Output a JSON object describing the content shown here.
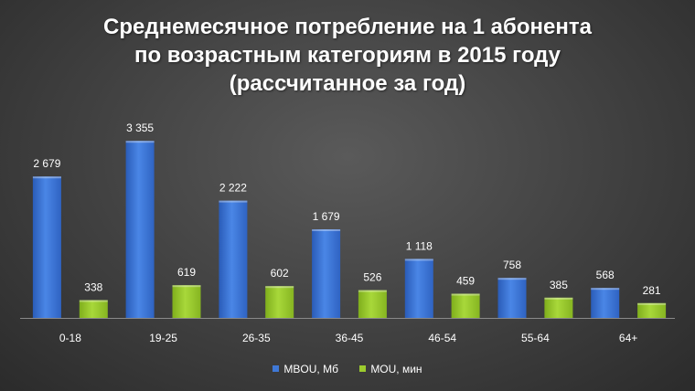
{
  "colors": {
    "series1": "#3f78d6",
    "series2": "#9ccb2e"
  },
  "chart_data": {
    "type": "bar",
    "title_lines": [
      "Среднемесячное потребление на 1 абонента",
      "по возрастным категориям в 2015 году",
      "(рассчитанное за год)"
    ],
    "categories": [
      "0-18",
      "19-25",
      "26-35",
      "36-45",
      "46-54",
      "55-64",
      "64+"
    ],
    "series": [
      {
        "name": "MBOU, Мб",
        "values": [
          2679,
          3355,
          2222,
          1679,
          1118,
          758,
          568
        ],
        "labels": [
          "2 679",
          "3 355",
          "2 222",
          "1 679",
          "1 118",
          "758",
          "568"
        ]
      },
      {
        "name": "MOU, мин",
        "values": [
          338,
          619,
          602,
          526,
          459,
          385,
          281
        ],
        "labels": [
          "338",
          "619",
          "602",
          "526",
          "459",
          "385",
          "281"
        ]
      }
    ],
    "ylim": [
      0,
      3600
    ],
    "grid": false,
    "legend": "bottom"
  }
}
